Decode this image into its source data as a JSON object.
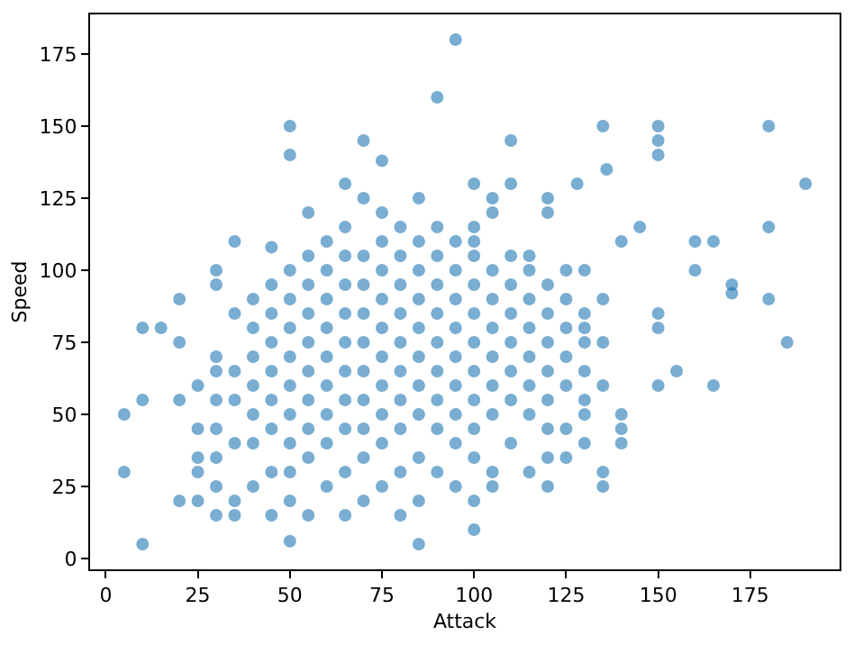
{
  "chart_data": {
    "type": "scatter",
    "xlabel": "Attack",
    "ylabel": "Speed",
    "xlim": [
      -4.25,
      199.25
    ],
    "ylim": [
      -3.75,
      188.75
    ],
    "xticks": [
      0,
      25,
      50,
      75,
      100,
      125,
      150,
      175
    ],
    "yticks": [
      0,
      25,
      50,
      75,
      100,
      125,
      150,
      175
    ],
    "marker": "circle",
    "series": [
      {
        "color": "#1f77b4",
        "x": [
          5,
          5,
          10,
          10,
          10,
          15,
          20,
          20,
          20,
          20,
          25,
          25,
          30,
          30,
          35,
          35,
          40,
          45,
          50,
          50,
          50,
          55,
          65,
          70,
          75,
          85,
          90,
          95,
          100,
          110,
          120,
          128,
          135,
          136,
          150,
          150,
          150,
          180,
          190,
          180,
          185,
          180,
          165,
          165,
          160,
          160,
          155,
          150,
          150,
          150,
          170,
          170,
          145,
          140,
          140,
          140,
          140,
          135,
          135,
          130,
          130,
          125,
          120,
          105,
          100,
          100,
          105,
          110,
          120,
          115,
          25,
          25,
          25,
          30,
          30,
          30,
          30,
          30,
          30,
          30,
          35,
          35,
          35,
          35,
          35,
          40,
          40,
          40,
          40,
          40,
          40,
          45,
          45,
          45,
          45,
          45,
          45,
          45,
          45,
          50,
          50,
          50,
          50,
          50,
          50,
          50,
          50,
          50,
          55,
          55,
          55,
          55,
          55,
          55,
          55,
          55,
          55,
          60,
          60,
          60,
          60,
          60,
          60,
          60,
          60,
          60,
          65,
          65,
          65,
          65,
          65,
          65,
          65,
          65,
          65,
          65,
          70,
          70,
          70,
          70,
          70,
          70,
          70,
          70,
          70,
          70,
          75,
          75,
          75,
          75,
          75,
          75,
          75,
          75,
          75,
          75,
          80,
          80,
          80,
          80,
          80,
          80,
          80,
          80,
          80,
          80,
          85,
          85,
          85,
          85,
          85,
          85,
          85,
          85,
          85,
          85,
          90,
          90,
          90,
          90,
          90,
          90,
          90,
          90,
          90,
          95,
          95,
          95,
          95,
          95,
          95,
          95,
          95,
          95,
          100,
          100,
          100,
          100,
          100,
          100,
          100,
          100,
          100,
          100,
          105,
          105,
          105,
          105,
          105,
          105,
          105,
          105,
          110,
          110,
          110,
          110,
          110,
          110,
          110,
          115,
          115,
          115,
          115,
          115,
          115,
          115,
          120,
          120,
          120,
          120,
          120,
          120,
          120,
          125,
          125,
          125,
          125,
          125,
          125,
          130,
          130,
          130,
          130,
          130,
          130,
          135,
          135,
          135
        ],
        "values": [
          50,
          30,
          5,
          55,
          80,
          80,
          90,
          75,
          55,
          20,
          30,
          60,
          100,
          70,
          15,
          110,
          90,
          108,
          140,
          150,
          6,
          120,
          130,
          145,
          138,
          5,
          160,
          180,
          10,
          145,
          125,
          130,
          150,
          135,
          150,
          145,
          140,
          150,
          130,
          115,
          75,
          90,
          60,
          110,
          110,
          100,
          65,
          60,
          80,
          85,
          95,
          92,
          115,
          110,
          40,
          45,
          50,
          30,
          25,
          50,
          80,
          35,
          25,
          25,
          110,
          130,
          125,
          130,
          120,
          105,
          20,
          35,
          45,
          15,
          25,
          35,
          45,
          55,
          65,
          95,
          20,
          40,
          55,
          65,
          85,
          25,
          40,
          50,
          60,
          70,
          80,
          15,
          30,
          45,
          55,
          65,
          75,
          85,
          95,
          20,
          30,
          40,
          50,
          60,
          70,
          80,
          90,
          100,
          15,
          35,
          45,
          55,
          65,
          75,
          85,
          95,
          105,
          25,
          40,
          50,
          60,
          70,
          80,
          90,
          100,
          110,
          15,
          30,
          45,
          55,
          65,
          75,
          85,
          95,
          105,
          115,
          20,
          35,
          45,
          55,
          65,
          75,
          85,
          95,
          105,
          125,
          25,
          40,
          50,
          60,
          70,
          80,
          90,
          100,
          110,
          120,
          15,
          30,
          45,
          55,
          65,
          75,
          85,
          95,
          105,
          115,
          20,
          35,
          50,
          60,
          70,
          80,
          90,
          100,
          110,
          125,
          30,
          45,
          55,
          65,
          75,
          85,
          95,
          105,
          115,
          25,
          40,
          50,
          60,
          70,
          80,
          90,
          100,
          110,
          20,
          35,
          45,
          55,
          65,
          75,
          85,
          95,
          105,
          115,
          30,
          50,
          60,
          70,
          80,
          90,
          100,
          120,
          40,
          55,
          65,
          75,
          85,
          95,
          105,
          30,
          50,
          60,
          70,
          80,
          90,
          100,
          35,
          45,
          55,
          65,
          75,
          85,
          95,
          45,
          60,
          70,
          80,
          90,
          100,
          40,
          55,
          65,
          75,
          85,
          100,
          60,
          75,
          90
        ]
      }
    ]
  }
}
